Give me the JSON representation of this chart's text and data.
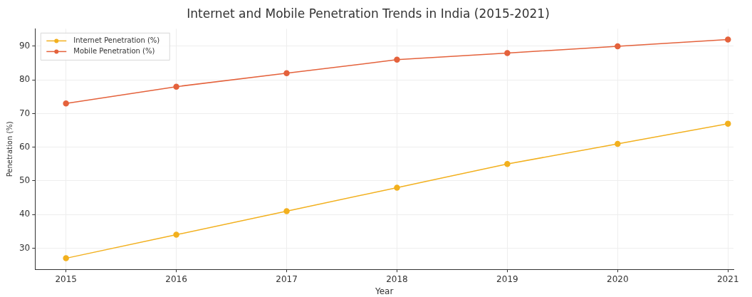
{
  "chart_data": {
    "type": "line",
    "title": "Internet and Mobile Penetration Trends in India (2015-2021)",
    "xlabel": "Year",
    "ylabel": "Penetration (%)",
    "x": [
      2015,
      2016,
      2017,
      2018,
      2019,
      2020,
      2021
    ],
    "series": [
      {
        "name": "Internet Penetration (%)",
        "color": "#f2b01e",
        "values": [
          27,
          34,
          41,
          48,
          55,
          61,
          67
        ]
      },
      {
        "name": "Mobile Penetration (%)",
        "color": "#e4623c",
        "values": [
          73,
          78,
          82,
          86,
          88,
          90,
          92
        ]
      }
    ],
    "xlim": [
      2014.72,
      2021.05
    ],
    "xticks": [
      2015,
      2016,
      2017,
      2018,
      2019,
      2020,
      2021
    ],
    "ylim": [
      23.7,
      95.2
    ],
    "yticks": [
      30,
      40,
      50,
      60,
      70,
      80,
      90
    ],
    "grid": true,
    "legend": "top left",
    "marker": "circle",
    "line_style": "solid"
  }
}
